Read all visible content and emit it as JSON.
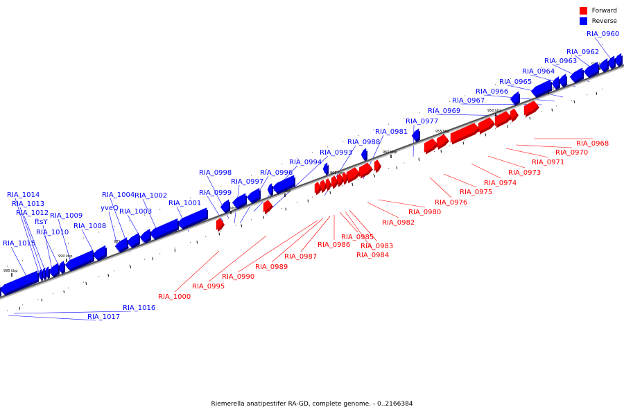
{
  "caption": "Riemerella anatipestifer RA-GD, complete genome. - 0..2166384",
  "legend": [
    {
      "label": "Forward",
      "color": "#ff0000"
    },
    {
      "label": "Reverse",
      "color": "#0000ff"
    }
  ],
  "colors": {
    "forward": "#ff0000",
    "reverse": "#0000ff",
    "backbone": "#555555"
  },
  "tick_labels": [
    "940 kbp",
    "945 kbp",
    "950 kbp",
    "955 kbp",
    "960 kbp",
    "965 kbp",
    "970 kbp",
    "975 kbp",
    "980 kbp",
    "985 kbp",
    "990 kbp",
    "995 kbp"
  ],
  "reverse_genes": [
    "RIA_0960",
    "RIA_0962",
    "RIA_0963",
    "RIA_0964",
    "RIA_0965",
    "RIA_0966",
    "RIA_0967",
    "RIA_0969",
    "RIA_0977",
    "RIA_0981",
    "RIA_0988",
    "RIA_0993",
    "RIA_0994",
    "RIA_0996",
    "RIA_0997",
    "RIA_0998",
    "RIA_0999",
    "RIA_1001",
    "RIA_1002",
    "RIA_1003",
    "RIA_1004",
    "yveQ",
    "RIA_1008",
    "RIA_1009",
    "RIA_1010",
    "ftsY",
    "RIA_1012",
    "RIA_1013",
    "RIA_1014",
    "RIA_1015",
    "RIA_1016",
    "RIA_1017"
  ],
  "forward_genes": [
    "RIA_0968",
    "RIA_0970",
    "RIA_0971",
    "RIA_0973",
    "RIA_0974",
    "RIA_0975",
    "RIA_0976",
    "RIA_0980",
    "RIA_0982",
    "RIA_0983",
    "RIA_0984",
    "RIA_0985",
    "RIA_0986",
    "RIA_0987",
    "RIA_0989",
    "RIA_0990",
    "RIA_0995",
    "RIA_1000"
  ]
}
